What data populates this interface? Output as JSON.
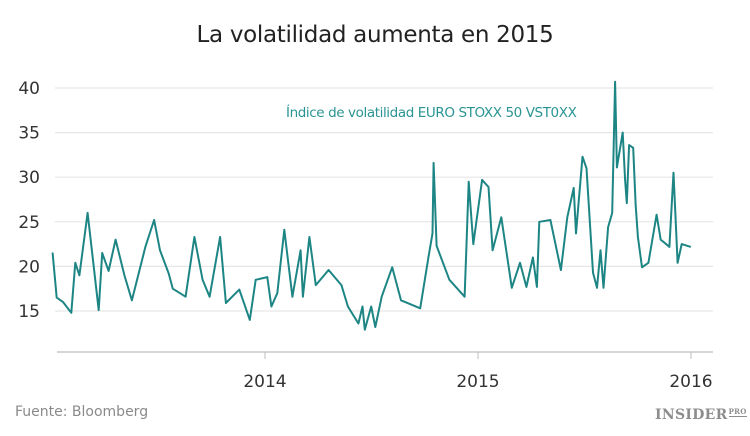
{
  "chart_data": {
    "type": "line",
    "title": "La volatilidad aumenta en 2015",
    "xlabel": "",
    "ylabel": "",
    "source": "Fuente: Bloomberg",
    "logo": "INSIDER PRO",
    "annotation": "Índice de volatilidad EURO STOXX  50 VST0XX",
    "ylim": [
      11,
      41
    ],
    "yticks": [
      15,
      20,
      25,
      30,
      35,
      40
    ],
    "xlim": [
      "2013-01-01",
      "2016-03-01"
    ],
    "xticks": [
      {
        "label": "2014",
        "date": "2014-01-01"
      },
      {
        "label": "2015",
        "date": "2015-01-01"
      },
      {
        "label": "2016",
        "date": "2016-01-01"
      }
    ],
    "grid": true,
    "line_color": "#1e8585",
    "series": [
      {
        "points": [
          [
            "2013-01-02",
            21.5
          ],
          [
            "2013-01-09",
            16.5
          ],
          [
            "2013-01-20",
            16.0
          ],
          [
            "2013-02-03",
            14.8
          ],
          [
            "2013-02-10",
            20.4
          ],
          [
            "2013-02-17",
            19.0
          ],
          [
            "2013-03-03",
            26.0
          ],
          [
            "2013-03-22",
            15.1
          ],
          [
            "2013-03-28",
            21.5
          ],
          [
            "2013-04-08",
            19.5
          ],
          [
            "2013-04-20",
            23.0
          ],
          [
            "2013-05-05",
            19.0
          ],
          [
            "2013-05-18",
            16.2
          ],
          [
            "2013-06-10",
            22.2
          ],
          [
            "2013-06-25",
            25.2
          ],
          [
            "2013-07-05",
            21.8
          ],
          [
            "2013-07-20",
            19.2
          ],
          [
            "2013-07-27",
            17.5
          ],
          [
            "2013-08-18",
            16.6
          ],
          [
            "2013-09-02",
            23.3
          ],
          [
            "2013-09-16",
            18.5
          ],
          [
            "2013-09-28",
            16.6
          ],
          [
            "2013-10-16",
            23.3
          ],
          [
            "2013-10-26",
            15.9
          ],
          [
            "2013-11-18",
            17.4
          ],
          [
            "2013-12-06",
            14.0
          ],
          [
            "2013-12-16",
            18.5
          ],
          [
            "2014-01-05",
            18.8
          ],
          [
            "2014-01-12",
            15.5
          ],
          [
            "2014-01-22",
            17.0
          ],
          [
            "2014-02-03",
            24.1
          ],
          [
            "2014-02-17",
            16.6
          ],
          [
            "2014-03-03",
            21.8
          ],
          [
            "2014-03-07",
            16.6
          ],
          [
            "2014-03-18",
            23.3
          ],
          [
            "2014-03-29",
            17.9
          ],
          [
            "2014-04-20",
            19.6
          ],
          [
            "2014-05-12",
            17.9
          ],
          [
            "2014-05-23",
            15.5
          ],
          [
            "2014-06-10",
            13.6
          ],
          [
            "2014-06-17",
            15.5
          ],
          [
            "2014-06-21",
            12.9
          ],
          [
            "2014-07-02",
            15.5
          ],
          [
            "2014-07-09",
            13.2
          ],
          [
            "2014-07-20",
            16.6
          ],
          [
            "2014-08-07",
            19.9
          ],
          [
            "2014-08-22",
            16.2
          ],
          [
            "2014-09-24",
            15.3
          ],
          [
            "2014-10-08",
            21.0
          ],
          [
            "2014-10-15",
            23.7
          ],
          [
            "2014-10-17",
            31.6
          ],
          [
            "2014-10-22",
            22.3
          ],
          [
            "2014-11-13",
            18.5
          ],
          [
            "2014-12-09",
            16.6
          ],
          [
            "2014-12-12",
            21.8
          ],
          [
            "2014-12-16",
            29.5
          ],
          [
            "2014-12-24",
            22.5
          ],
          [
            "2015-01-08",
            29.7
          ],
          [
            "2015-01-19",
            28.9
          ],
          [
            "2015-01-26",
            21.8
          ],
          [
            "2015-02-10",
            25.5
          ],
          [
            "2015-02-28",
            17.6
          ],
          [
            "2015-03-14",
            20.4
          ],
          [
            "2015-03-25",
            17.7
          ],
          [
            "2015-04-05",
            21.0
          ],
          [
            "2015-04-12",
            17.7
          ],
          [
            "2015-04-16",
            25.0
          ],
          [
            "2015-05-05",
            25.2
          ],
          [
            "2015-05-23",
            19.6
          ],
          [
            "2015-06-03",
            25.5
          ],
          [
            "2015-06-14",
            28.8
          ],
          [
            "2015-06-18",
            23.7
          ],
          [
            "2015-06-29",
            32.3
          ],
          [
            "2015-07-06",
            31.0
          ],
          [
            "2015-07-17",
            19.3
          ],
          [
            "2015-07-24",
            17.6
          ],
          [
            "2015-07-30",
            21.8
          ],
          [
            "2015-08-04",
            17.6
          ],
          [
            "2015-08-12",
            24.4
          ],
          [
            "2015-08-19",
            26.0
          ],
          [
            "2015-08-24",
            40.7
          ],
          [
            "2015-08-27",
            31.1
          ],
          [
            "2015-09-06",
            35.0
          ],
          [
            "2015-09-10",
            29.7
          ],
          [
            "2015-09-13",
            27.1
          ],
          [
            "2015-09-17",
            33.6
          ],
          [
            "2015-09-24",
            33.3
          ],
          [
            "2015-09-28",
            27.0
          ],
          [
            "2015-10-02",
            23.3
          ],
          [
            "2015-10-09",
            19.9
          ],
          [
            "2015-10-20",
            20.4
          ],
          [
            "2015-11-03",
            25.8
          ],
          [
            "2015-11-10",
            23.0
          ],
          [
            "2015-11-25",
            22.2
          ],
          [
            "2015-12-02",
            30.5
          ],
          [
            "2015-12-09",
            20.4
          ],
          [
            "2015-12-16",
            22.5
          ],
          [
            "2015-12-31",
            22.2
          ]
        ]
      }
    ]
  }
}
